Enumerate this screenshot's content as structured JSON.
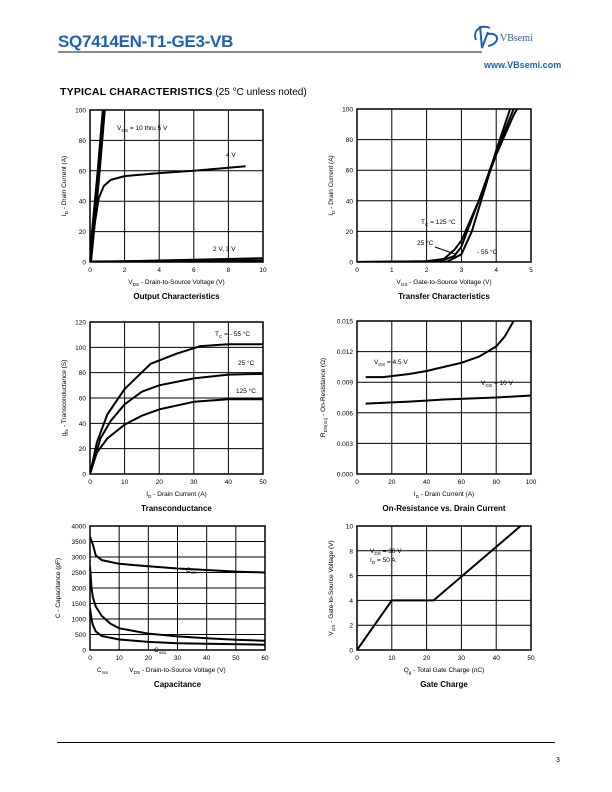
{
  "header": {
    "title": "SQ7414EN-T1-GE3-VB",
    "brand": "VBsemi",
    "website": "www.VBsemi.com",
    "accent_color": "#1f5fb5"
  },
  "section": {
    "title": "TYPICAL CHARACTERISTICS",
    "note": "(25 °C unless noted)"
  },
  "footer": {
    "page": "3"
  },
  "chart_data": [
    {
      "type": "line",
      "title": "Output Characteristics",
      "xlabel": [
        "V",
        "DS",
        " - Drain-to-Source Voltage (V)"
      ],
      "ylabel": [
        "I",
        "D",
        " - Drain Current (A)"
      ],
      "xlim": [
        0,
        10
      ],
      "ylim": [
        0,
        100
      ],
      "grid": true,
      "xticks": [
        "0",
        "2",
        "4",
        "6",
        "8",
        "10"
      ],
      "yticks": [
        "0",
        "20",
        "40",
        "60",
        "80",
        "100"
      ],
      "series": [
        {
          "name": "VGS = 10 thru 5 V",
          "points": [
            [
              0,
              0
            ],
            [
              0.3,
              35
            ],
            [
              0.5,
              60
            ],
            [
              0.8,
              100
            ]
          ]
        },
        {
          "name": "VGS = 4 V",
          "points": [
            [
              0,
              0
            ],
            [
              0.2,
              20
            ],
            [
              0.5,
              42
            ],
            [
              0.8,
              50
            ],
            [
              1.2,
              54
            ],
            [
              2,
              56.5
            ],
            [
              4,
              58.5
            ],
            [
              6,
              60
            ],
            [
              8,
              62
            ],
            [
              9,
              63
            ]
          ]
        },
        {
          "name": "VGS = 3 V",
          "points": [
            [
              0,
              0
            ],
            [
              4,
              1
            ],
            [
              10,
              2.5
            ]
          ]
        },
        {
          "name": "VGS = 2 V",
          "points": [
            [
              0,
              0.3
            ],
            [
              10,
              1
            ]
          ]
        }
      ],
      "annotations": [
        [
          "V",
          "GS",
          " = 10 thru 5 V"
        ],
        [
          "4 V"
        ],
        [
          "2 V, 3 V"
        ]
      ]
    },
    {
      "type": "line",
      "title": "Transfer Characteristics",
      "xlabel": [
        "V",
        "GS",
        " - Gate-to-Source Voltage (V)"
      ],
      "ylabel": [
        "I",
        "D",
        " - Drain Current (A)"
      ],
      "xlim": [
        0,
        5
      ],
      "ylim": [
        0,
        100
      ],
      "grid": true,
      "xticks": [
        "0",
        "1",
        "2",
        "3",
        "4",
        "5"
      ],
      "yticks": [
        "0",
        "20",
        "40",
        "60",
        "80",
        "100"
      ],
      "series": [
        {
          "name": "TC = 125 °C",
          "points": [
            [
              0,
              0
            ],
            [
              2,
              0.5
            ],
            [
              2.5,
              2
            ],
            [
              2.8,
              8
            ],
            [
              3,
              14
            ],
            [
              3.5,
              40
            ],
            [
              4,
              70
            ],
            [
              4.5,
              96
            ],
            [
              4.6,
              100
            ]
          ]
        },
        {
          "name": "TC = 25 °C",
          "points": [
            [
              0,
              0
            ],
            [
              2.4,
              0.5
            ],
            [
              2.8,
              4
            ],
            [
              3,
              10
            ],
            [
              3.5,
              40
            ],
            [
              4,
              72
            ],
            [
              4.5,
              100
            ]
          ]
        },
        {
          "name": "TC = -55 °C",
          "points": [
            [
              0,
              0
            ],
            [
              2.6,
              0.3
            ],
            [
              3,
              5
            ],
            [
              3.3,
              20
            ],
            [
              3.7,
              50
            ],
            [
              4,
              73
            ],
            [
              4.4,
              100
            ]
          ]
        }
      ],
      "annotations": [
        [
          "T",
          "C",
          " = 125 °C"
        ],
        [
          "25 °C"
        ],
        [
          "- 55 °C"
        ]
      ]
    },
    {
      "type": "line",
      "title": "Transconductance",
      "xlabel": [
        "I",
        "D",
        " - Drain Current (A)"
      ],
      "ylabel": [
        "g",
        "fs",
        " - Transconductance (S)"
      ],
      "xlim": [
        0,
        50
      ],
      "ylim": [
        0,
        120
      ],
      "grid": true,
      "xticks": [
        "0",
        "10",
        "20",
        "30",
        "40",
        "50"
      ],
      "yticks": [
        "0",
        "20",
        "40",
        "60",
        "80",
        "100",
        "120"
      ],
      "series": [
        {
          "name": "TC = -55 °C",
          "points": [
            [
              0,
              0
            ],
            [
              2,
              25
            ],
            [
              5,
              47
            ],
            [
              10,
              67
            ],
            [
              17.5,
              87
            ],
            [
              25,
              95
            ],
            [
              32,
              101
            ],
            [
              40,
              102.5
            ],
            [
              50,
              102.5
            ]
          ]
        },
        {
          "name": "TC = 25 °C",
          "points": [
            [
              0,
              0
            ],
            [
              3,
              28
            ],
            [
              6,
              42
            ],
            [
              10,
              55
            ],
            [
              15,
              65
            ],
            [
              20,
              70
            ],
            [
              30,
              75.5
            ],
            [
              40,
              78.5
            ],
            [
              50,
              79
            ]
          ]
        },
        {
          "name": "TC = 125 °C",
          "points": [
            [
              0,
              0
            ],
            [
              2,
              17
            ],
            [
              5,
              28
            ],
            [
              10,
              39
            ],
            [
              15,
              46
            ],
            [
              20,
              51
            ],
            [
              30,
              57
            ],
            [
              40,
              59
            ],
            [
              50,
              59
            ]
          ]
        }
      ],
      "annotations": [
        [
          "T",
          "C",
          " = - 55 °C"
        ],
        [
          "25 °C"
        ],
        [
          "125 °C"
        ]
      ]
    },
    {
      "type": "line",
      "title": "On-Resistance vs. Drain Current",
      "xlabel": [
        "I",
        "D",
        " - Drain Current (A)"
      ],
      "ylabel": [
        "R",
        "DS(on)",
        " - On-Resistance (Ω)"
      ],
      "xlim": [
        0,
        100
      ],
      "ylim": [
        0,
        0.015
      ],
      "grid": true,
      "xticks": [
        "0",
        "20",
        "40",
        "60",
        "80",
        "100"
      ],
      "yticks": [
        "0.000",
        "0.003",
        "0.006",
        "0.009",
        "0.012",
        "0.015"
      ],
      "series": [
        {
          "name": "VGS = 4.5 V",
          "points": [
            [
              5,
              0.0095
            ],
            [
              15,
              0.0095
            ],
            [
              30,
              0.0098
            ],
            [
              40,
              0.0101
            ],
            [
              50,
              0.0105
            ],
            [
              60,
              0.0109
            ],
            [
              70,
              0.0115
            ],
            [
              80,
              0.0125
            ],
            [
              85,
              0.0135
            ],
            [
              90,
              0.015
            ]
          ]
        },
        {
          "name": "VGS = 10 V",
          "points": [
            [
              5,
              0.0069
            ],
            [
              30,
              0.0071
            ],
            [
              50,
              0.0073
            ],
            [
              80,
              0.0075
            ],
            [
              100,
              0.0077
            ]
          ]
        }
      ],
      "annotations": [
        [
          "V",
          "GS",
          " = 4.5 V"
        ],
        [
          "V",
          "GS",
          " = 10 V"
        ]
      ]
    },
    {
      "type": "line",
      "title": "Capacitance",
      "xlabel": [
        "V",
        "DS",
        " - Drain-to-Source Voltage (V)"
      ],
      "ylabel": [
        "C - Capacitance (pF)"
      ],
      "xlim": [
        0,
        60
      ],
      "ylim": [
        0,
        4000
      ],
      "grid": true,
      "xticks": [
        "0",
        "10",
        "20",
        "30",
        "40",
        "50",
        "60"
      ],
      "yticks": [
        "0",
        "500",
        "1000",
        "1500",
        "2000",
        "2500",
        "3000",
        "3500",
        "4000"
      ],
      "series": [
        {
          "name": "Ciss",
          "points": [
            [
              0,
              3650
            ],
            [
              1,
              3400
            ],
            [
              2,
              3050
            ],
            [
              4,
              2900
            ],
            [
              10,
              2780
            ],
            [
              20,
              2700
            ],
            [
              30,
              2630
            ],
            [
              40,
              2580
            ],
            [
              50,
              2530
            ],
            [
              60,
              2500
            ]
          ]
        },
        {
          "name": "Coss",
          "points": [
            [
              0,
              2700
            ],
            [
              0.5,
              2000
            ],
            [
              1,
              1700
            ],
            [
              2,
              1400
            ],
            [
              4,
              1100
            ],
            [
              7,
              850
            ],
            [
              10,
              700
            ],
            [
              20,
              530
            ],
            [
              30,
              440
            ],
            [
              40,
              380
            ],
            [
              50,
              330
            ],
            [
              60,
              300
            ]
          ]
        },
        {
          "name": "Crss",
          "points": [
            [
              0,
              1350
            ],
            [
              0.5,
              1000
            ],
            [
              1,
              800
            ],
            [
              2,
              600
            ],
            [
              4,
              450
            ],
            [
              10,
              340
            ],
            [
              20,
              260
            ],
            [
              30,
              220
            ],
            [
              40,
              200
            ],
            [
              60,
              170
            ]
          ]
        }
      ],
      "annotations": [
        [
          "C",
          "iss"
        ],
        [
          "C",
          "oss"
        ],
        [
          "C",
          "rss"
        ]
      ]
    },
    {
      "type": "line",
      "title": "Gate Charge",
      "xlabel": [
        "Q",
        "g",
        " - Total Gate Charge (nC)"
      ],
      "ylabel": [
        "V",
        "GS",
        " - Gate-to-Source Voltage (V)"
      ],
      "xlim": [
        0,
        50
      ],
      "ylim": [
        0,
        10
      ],
      "grid": true,
      "xticks": [
        "0",
        "10",
        "20",
        "30",
        "40",
        "50"
      ],
      "yticks": [
        "0",
        "2",
        "4",
        "6",
        "8",
        "10"
      ],
      "series": [
        {
          "name": "VDS = 30 V, ID = 50 A",
          "points": [
            [
              0,
              0
            ],
            [
              10,
              4
            ],
            [
              22,
              4
            ],
            [
              47,
              10
            ]
          ]
        }
      ],
      "annotations": [
        [
          "V",
          "DS",
          " = 30 V"
        ],
        [
          "I",
          "D",
          " = 50 A"
        ]
      ]
    }
  ]
}
